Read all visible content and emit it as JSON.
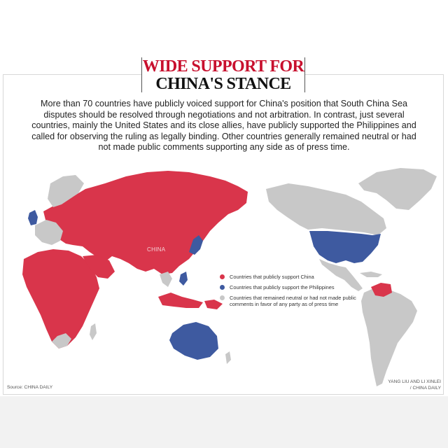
{
  "title": {
    "line1": "WIDE SUPPORT FOR",
    "line2": "CHINA'S STANCE"
  },
  "intro_text": "More than 70 countries have publicly voiced support for China's position that South China Sea disputes should be resolved through negotiations and not arbitration. In contrast, just several countries, mainly the United States and its close allies, have publicly supported the Philippines and called for observing the ruling as legally binding. Other countries generally remained neutral or had not made public comments supporting any side as of press time.",
  "map_label_china": "CHINA",
  "legend": [
    {
      "label": "Countries that publicly support China",
      "color": "#d9354b"
    },
    {
      "label": "Countries that publicly support the Philippines",
      "color": "#3e5aa0"
    },
    {
      "label": "Countries that remained neutral or had not made public comments in favor of any party as of press time",
      "color": "#c8c8c8"
    }
  ],
  "source": "Source: CHINA DAILY",
  "credit_line1": "YANG LIU AND LI XINLEI",
  "credit_line2": "/ CHINA DAILY",
  "colors": {
    "support_china": "#d9354b",
    "support_philippines": "#3e5aa0",
    "neutral": "#c8c8c8",
    "title_accent": "#c8102e"
  }
}
